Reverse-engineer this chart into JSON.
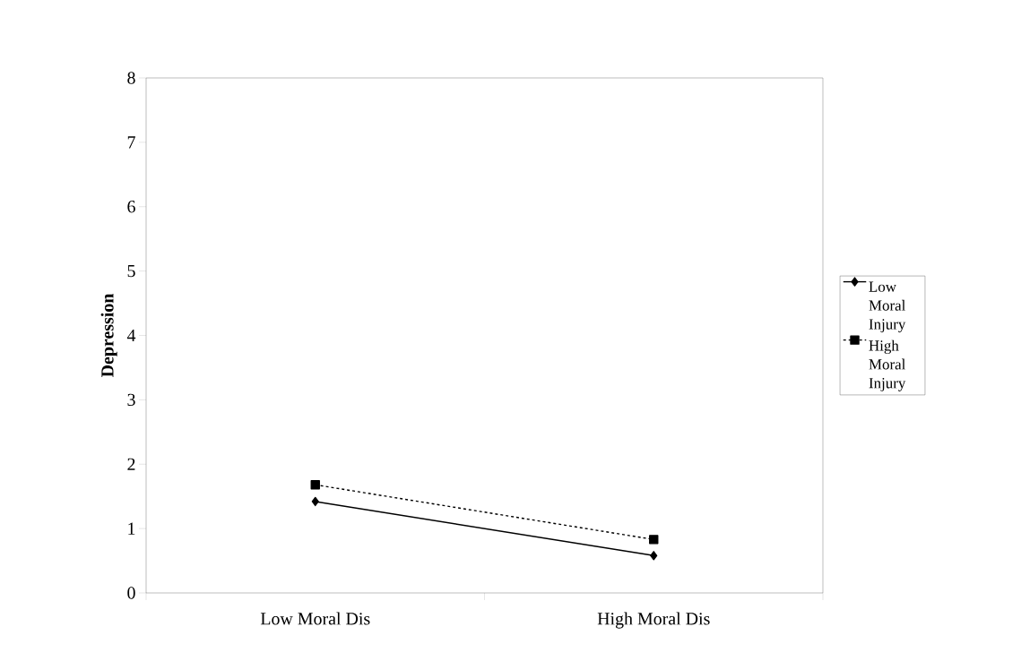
{
  "chart_data": {
    "type": "line",
    "ylabel": "Depression",
    "categories": [
      "Low Moral Dis",
      "High Moral Dis"
    ],
    "series": [
      {
        "name": "Low Moral Injury",
        "color": "#000000",
        "values": [
          1.42,
          0.58
        ],
        "marker": "diamond",
        "line_style": "solid"
      },
      {
        "name": "High Moral Injury",
        "color": "#000000",
        "values": [
          1.68,
          0.83
        ],
        "marker": "square",
        "line_style": "dashed"
      }
    ],
    "ylim": [
      0,
      8
    ],
    "yticks": [
      0,
      1,
      2,
      3,
      4,
      5,
      6,
      7,
      8
    ],
    "grid": false,
    "legend": "right"
  }
}
